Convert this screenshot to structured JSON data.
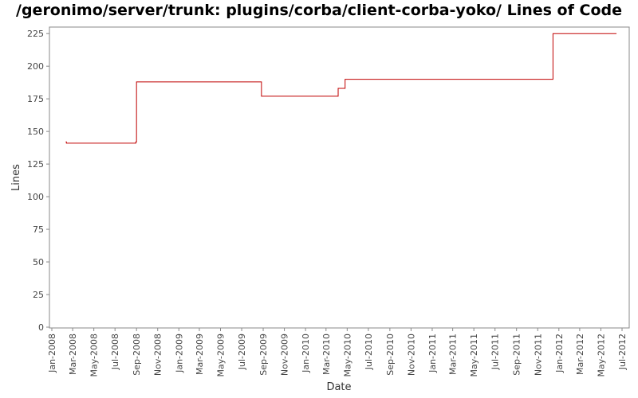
{
  "chart_data": {
    "type": "line",
    "title": "/geronimo/server/trunk: plugins/corba/client-corba-yoko/ Lines of Code",
    "xlabel": "Date",
    "ylabel": "Lines",
    "ylim": [
      0,
      230
    ],
    "yticks": [
      0,
      25,
      50,
      75,
      100,
      125,
      150,
      175,
      200,
      225
    ],
    "xlim": [
      "2008-01-01",
      "2012-07-01"
    ],
    "xticks": [
      "Jan-2008",
      "Mar-2008",
      "May-2008",
      "Jul-2008",
      "Sep-2008",
      "Nov-2008",
      "Jan-2009",
      "Mar-2009",
      "May-2009",
      "Jul-2009",
      "Sep-2009",
      "Nov-2009",
      "Jan-2010",
      "Mar-2010",
      "May-2010",
      "Jul-2010",
      "Sep-2010",
      "Nov-2010",
      "Jan-2011",
      "Mar-2011",
      "May-2011",
      "Jul-2011",
      "Sep-2011",
      "Nov-2011",
      "Jan-2012",
      "Mar-2012",
      "May-2012",
      "Jul-2012"
    ],
    "grid": false,
    "step": true,
    "color": "#c00000",
    "series": [
      {
        "x": [
          "2008-02-10",
          "2008-02-12",
          "2008-08-30",
          "2008-09-01",
          "2009-08-27",
          "2010-04-05",
          "2010-04-25",
          "2011-12-15",
          "2012-06-15"
        ],
        "y": [
          142,
          141,
          142,
          188,
          177,
          183,
          190,
          225,
          225
        ]
      }
    ]
  }
}
